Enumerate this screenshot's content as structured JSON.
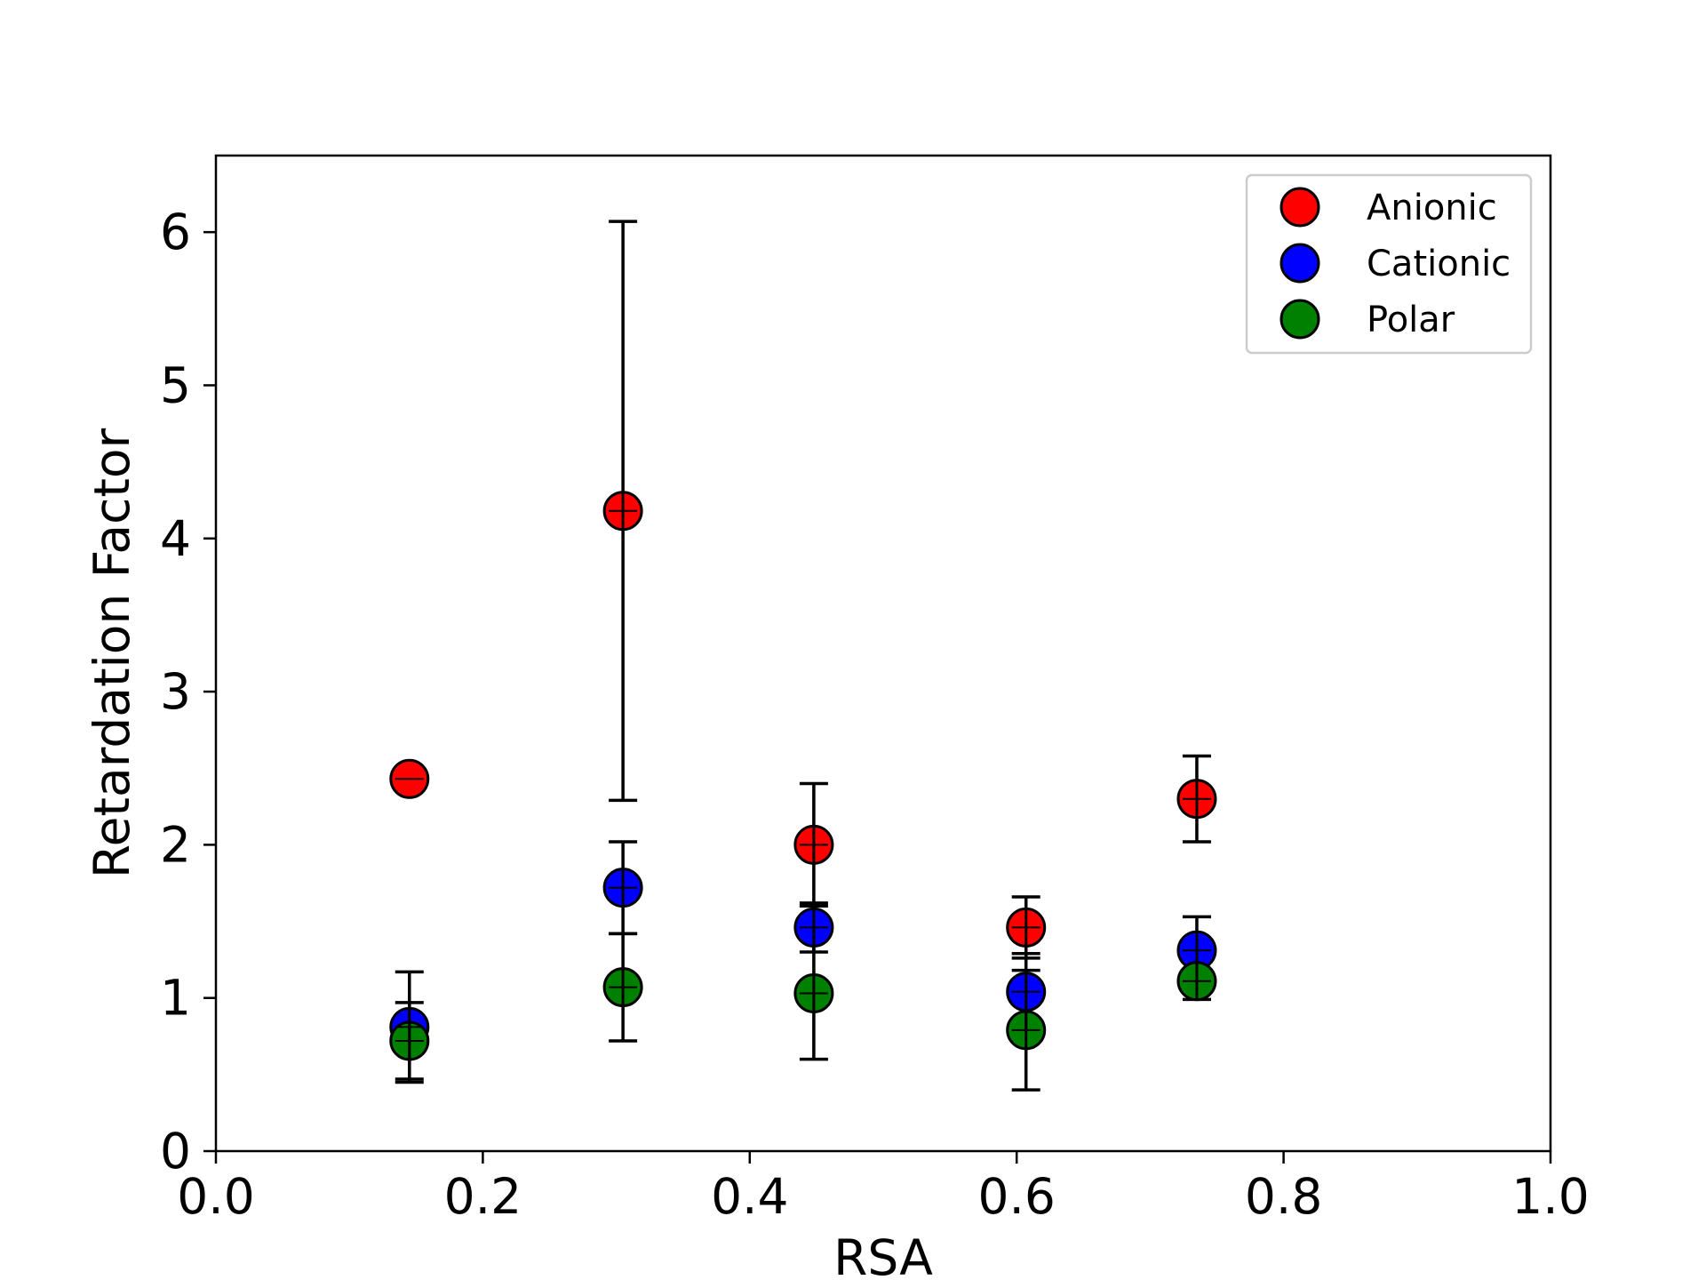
{
  "chart_data": {
    "type": "scatter",
    "title": "",
    "xlabel": "RSA",
    "ylabel": "Retardation Factor",
    "xlim": [
      0.0,
      1.0
    ],
    "ylim": [
      0,
      6.5
    ],
    "xticks": [
      "0.0",
      "0.2",
      "0.4",
      "0.6",
      "0.8",
      "1.0"
    ],
    "yticks": [
      "0",
      "1",
      "2",
      "3",
      "4",
      "5",
      "6"
    ],
    "grid": false,
    "legend_position": "top-right",
    "series": [
      {
        "name": "Anionic",
        "color": "#ff0000",
        "points": [
          {
            "x": 0.145,
            "y": 2.43,
            "err": 0.0
          },
          {
            "x": 0.305,
            "y": 4.18,
            "err": 1.89
          },
          {
            "x": 0.448,
            "y": 2.0,
            "err": 0.4
          },
          {
            "x": 0.607,
            "y": 1.46,
            "err": 0.2
          },
          {
            "x": 0.735,
            "y": 2.3,
            "err": 0.28
          }
        ]
      },
      {
        "name": "Cationic",
        "color": "#0000ff",
        "points": [
          {
            "x": 0.145,
            "y": 0.81,
            "err": 0.36
          },
          {
            "x": 0.305,
            "y": 1.72,
            "err": 0.3
          },
          {
            "x": 0.448,
            "y": 1.46,
            "err": 0.16
          },
          {
            "x": 0.607,
            "y": 1.04,
            "err": 0.25
          },
          {
            "x": 0.735,
            "y": 1.31,
            "err": 0.22
          }
        ]
      },
      {
        "name": "Polar",
        "color": "#008000",
        "points": [
          {
            "x": 0.145,
            "y": 0.72,
            "err": 0.25
          },
          {
            "x": 0.305,
            "y": 1.07,
            "err": 0.35
          },
          {
            "x": 0.448,
            "y": 1.03,
            "err": 0.43
          },
          {
            "x": 0.607,
            "y": 0.79,
            "err": 0.39
          },
          {
            "x": 0.735,
            "y": 1.11,
            "err": 0.12
          }
        ]
      }
    ]
  }
}
